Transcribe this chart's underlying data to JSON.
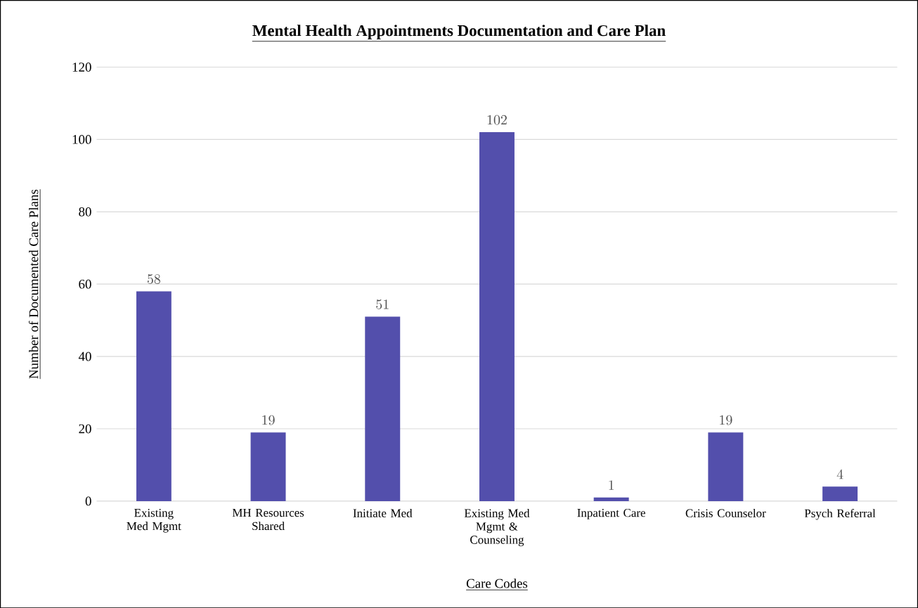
{
  "chart_data": {
    "type": "bar",
    "title": "Mental Health Appointments Documentation and Care Plan",
    "xlabel": "Care Codes",
    "ylabel": "Number of Documented Care Plans",
    "categories": [
      "Existing Med Mgmt",
      "MH Resources Shared",
      "Initiate Med",
      "Existing Med Mgmt & Counseling",
      "Inpatient Care",
      "Crisis Counselor",
      "Psych Referral"
    ],
    "values": [
      58,
      19,
      51,
      102,
      1,
      19,
      4
    ],
    "color": "#534fac",
    "ylim": [
      0,
      120
    ],
    "yticks": [
      0,
      20,
      40,
      60,
      80,
      100,
      120
    ],
    "grid": "y",
    "data_labels": true
  }
}
